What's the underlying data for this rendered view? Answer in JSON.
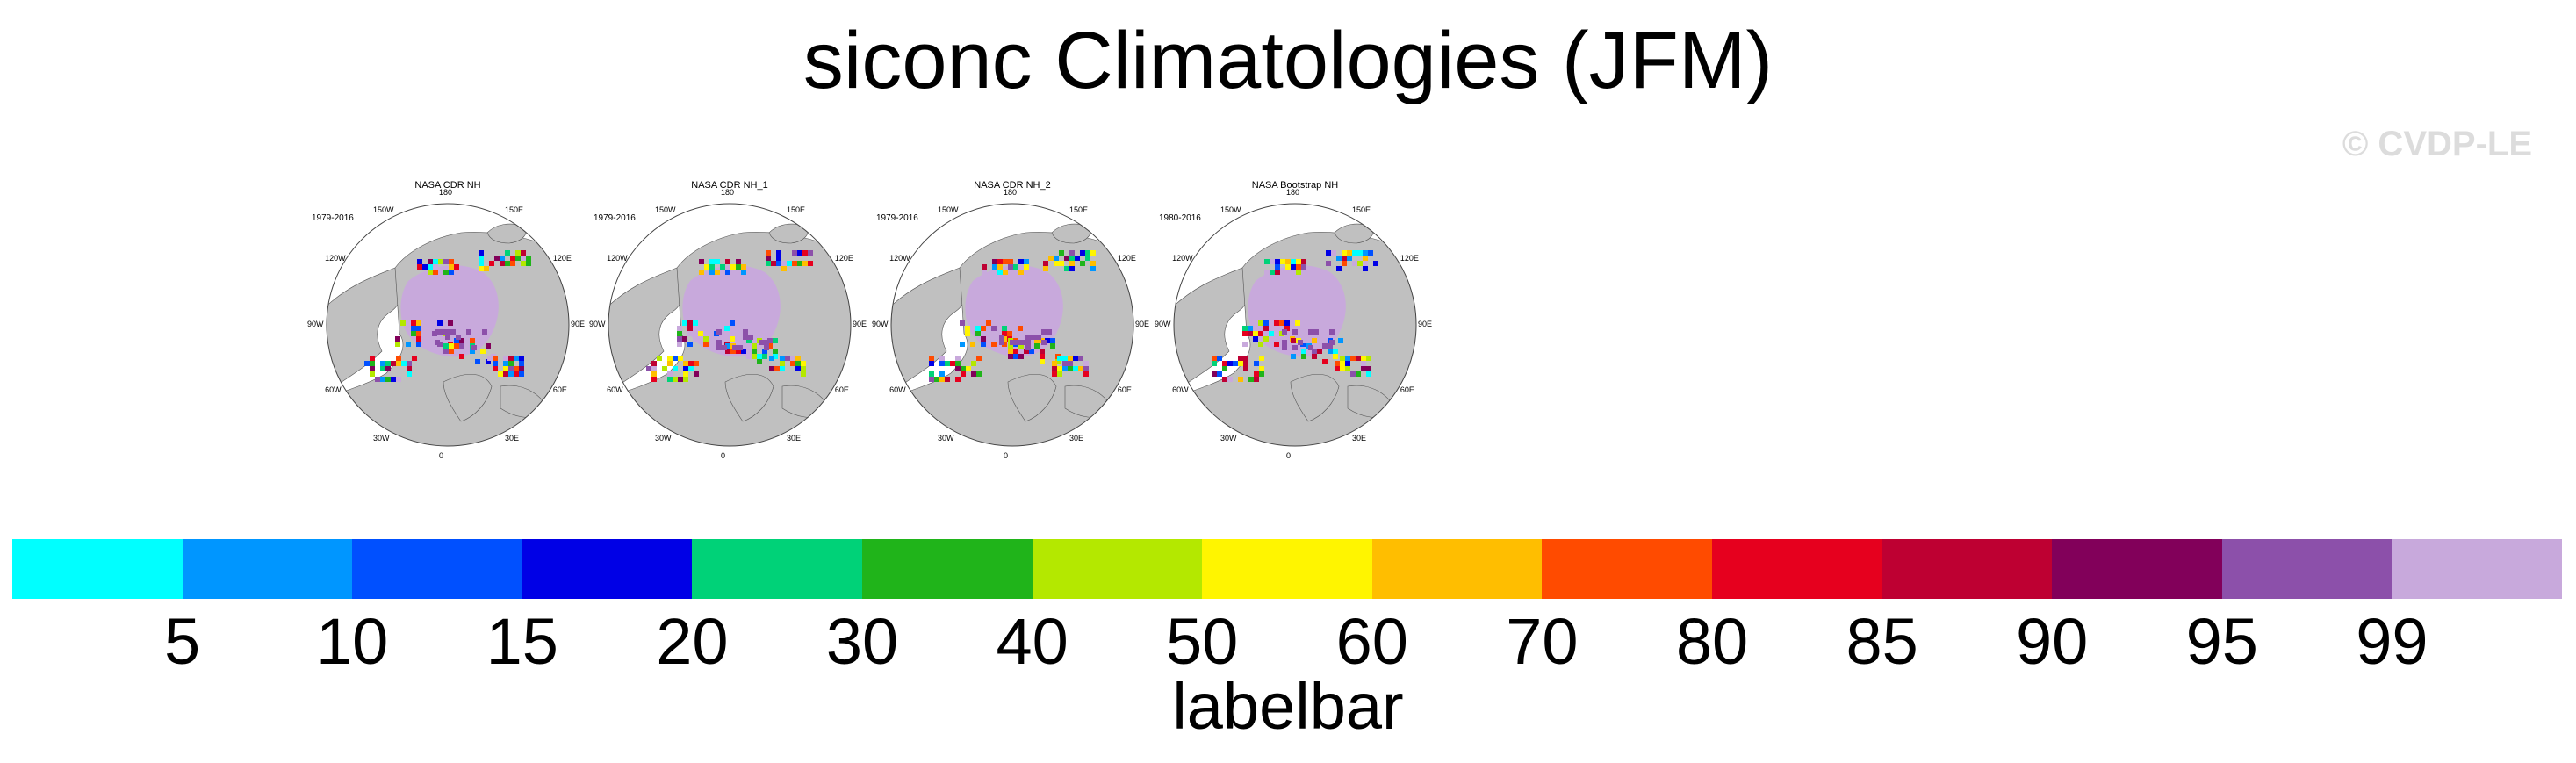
{
  "title": "siconc Climatologies (JFM)",
  "watermark": "© CVDP-LE",
  "colors": {
    "land": "#c0c0c0",
    "ocean": "#ffffff",
    "ice_core": "#c8a9dc"
  },
  "panels": [
    {
      "title": "NASA CDR NH",
      "years": "1979-2016"
    },
    {
      "title": "NASA CDR NH_1",
      "years": "1979-2016"
    },
    {
      "title": "NASA CDR NH_2",
      "years": "1979-2016"
    },
    {
      "title": "NASA Bootstrap NH",
      "years": "1980-2016"
    }
  ],
  "lon_labels": [
    "180",
    "150E",
    "120E",
    "90E",
    "60E",
    "30E",
    "0",
    "30W",
    "60W",
    "90W",
    "120W",
    "150W"
  ],
  "labelbar": {
    "title": "labelbar",
    "colors": [
      "#00ffff",
      "#0096ff",
      "#0050ff",
      "#0000e6",
      "#00d278",
      "#20b41a",
      "#b4e800",
      "#fff500",
      "#ffbe00",
      "#ff4b00",
      "#e6001e",
      "#be0032",
      "#82005a",
      "#8c50aa",
      "#c8a9dc"
    ],
    "ticks": [
      "5",
      "10",
      "15",
      "20",
      "30",
      "40",
      "50",
      "60",
      "70",
      "80",
      "85",
      "90",
      "95",
      "99"
    ]
  }
}
